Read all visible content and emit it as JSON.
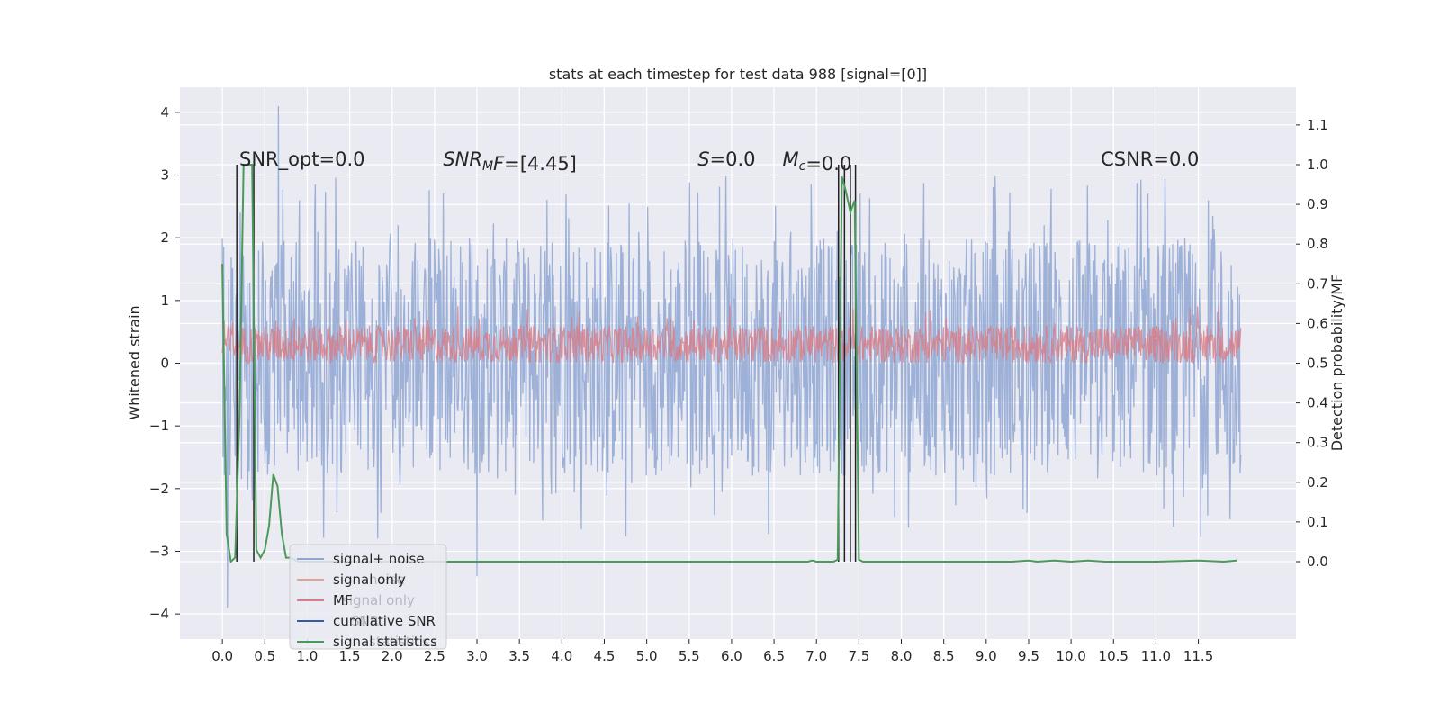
{
  "chart_data": {
    "type": "line",
    "title": "stats at each timestep for test data 988 [signal=[0]]",
    "ylabel": "Whitened strain",
    "y2label": "Detection probability/MF",
    "xlim": [
      -0.5,
      12.65
    ],
    "ylim": [
      -4.4,
      4.4
    ],
    "y2lim": [
      -0.195,
      1.195
    ],
    "x_ticks": [
      "0.0",
      "0.5",
      "1.0",
      "1.5",
      "2.0",
      "2.5",
      "3.0",
      "3.5",
      "4.0",
      "4.5",
      "5.0",
      "5.5",
      "6.0",
      "6.5",
      "7.0",
      "7.5",
      "8.0",
      "8.5",
      "9.0",
      "9.5",
      "10.0",
      "10.5",
      "11.0",
      "11.5"
    ],
    "y_ticks": [
      "4",
      "3",
      "2",
      "1",
      "0",
      "−1",
      "−2",
      "−3",
      "−4"
    ],
    "y2_ticks": [
      "1.1",
      "1.0",
      "0.9",
      "0.8",
      "0.7",
      "0.6",
      "0.5",
      "0.4",
      "0.3",
      "0.2",
      "0.1",
      "0.0"
    ],
    "grid": true,
    "legend": {
      "placement": "lower-left",
      "entries": [
        {
          "name": "signal+ noise",
          "color": "#8fa7d4"
        },
        {
          "name": "signal only",
          "color": "#e0a48e"
        },
        {
          "name": "MF",
          "color": "#d97c85"
        },
        {
          "name": "cumilative SNR",
          "color": "#3a5ba0"
        },
        {
          "name": "signal statistics",
          "color": "#4c9a5a"
        }
      ],
      "ghost_entries": [
        "noise",
        "signal only",
        "SNR",
        "statistics"
      ]
    },
    "annotations": [
      {
        "text": "SNR_opt=0.0",
        "x": 0.2
      },
      {
        "text": "=[4.45]",
        "math": "SNR",
        "sub": "M",
        "suffix_math": "F",
        "x": 2.6
      },
      {
        "text": "=0.0",
        "math": "S",
        "x": 5.6
      },
      {
        "text": "=0.0",
        "math": "M",
        "sub": "c",
        "x": 6.6
      },
      {
        "text": "CSNR=0.0",
        "x": 10.35
      }
    ],
    "series": [
      {
        "name": "signal statistics",
        "color": "#4c9a5a",
        "axis": "right",
        "x": [
          0.0,
          0.05,
          0.1,
          0.15,
          0.2,
          0.25,
          0.3,
          0.35,
          0.4,
          0.45,
          0.5,
          0.55,
          0.6,
          0.65,
          0.7,
          0.75,
          0.8,
          0.85,
          0.9,
          1.0,
          2.0,
          3.0,
          4.0,
          5.0,
          6.0,
          6.9,
          6.95,
          7.0,
          7.2,
          7.25,
          7.3,
          7.35,
          7.4,
          7.45,
          7.5,
          7.55,
          8.0,
          9.0,
          9.3,
          9.5,
          9.6,
          9.8,
          10.0,
          10.2,
          10.4,
          11.0,
          11.5,
          11.8,
          11.95
        ],
        "y": [
          0.75,
          0.07,
          0.0,
          0.01,
          0.35,
          1.0,
          1.0,
          1.0,
          0.03,
          0.01,
          0.03,
          0.09,
          0.22,
          0.19,
          0.07,
          0.01,
          0.01,
          0.005,
          0.0,
          0.0,
          0.0,
          0.0,
          0.0,
          0.0,
          0.0,
          0.0,
          0.003,
          0.0,
          0.0,
          0.005,
          0.97,
          0.93,
          0.88,
          0.91,
          0.005,
          0.0,
          0.0,
          0.0,
          0.0,
          0.003,
          0.0,
          0.003,
          0.0,
          0.003,
          0.0,
          0.0,
          0.003,
          0.0,
          0.003
        ]
      }
    ],
    "signal_noise": {
      "name": "signal+ noise",
      "color": "#8fa7d4",
      "x_range": [
        0.0,
        12.0
      ],
      "typical_range": [
        -1.8,
        2.0
      ],
      "y_min": -3.9,
      "y_max": 4.1
    },
    "mf": {
      "name": "MF",
      "color": "#d97c85",
      "x_range": [
        0.0,
        12.0
      ],
      "typical_range": [
        0.0,
        0.6
      ]
    },
    "detection_lines": {
      "color": "#222222",
      "x": [
        0.17,
        0.37,
        7.26,
        7.33,
        7.4,
        7.46
      ]
    }
  }
}
